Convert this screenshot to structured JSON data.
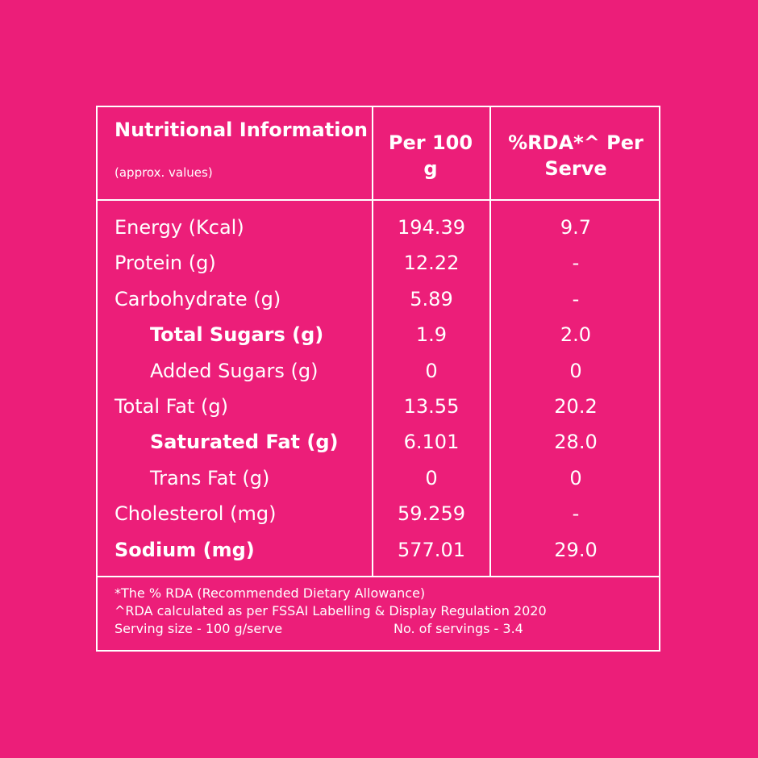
{
  "header": {
    "title": "Nutritional Information",
    "subtitle": "(approx. values)",
    "col1": "Per 100 g",
    "col2": "%RDA*^ Per Serve"
  },
  "rows": [
    {
      "name": "Energy (Kcal)",
      "per100g": "194.39",
      "rda": "9.7"
    },
    {
      "name": "Protein (g)",
      "per100g": "12.22",
      "rda": "-"
    },
    {
      "name": "Carbohydrate (g)",
      "per100g": "5.89",
      "rda": "-"
    },
    {
      "name": "Total Sugars (g)",
      "per100g": "1.9",
      "rda": "2.0"
    },
    {
      "name": "Added Sugars (g)",
      "per100g": "0",
      "rda": "0"
    },
    {
      "name": "Total Fat (g)",
      "per100g": "13.55",
      "rda": "20.2"
    },
    {
      "name": "Saturated Fat (g)",
      "per100g": "6.101",
      "rda": "28.0"
    },
    {
      "name": "Trans Fat (g)",
      "per100g": "0",
      "rda": "0"
    },
    {
      "name": "Cholesterol (mg)",
      "per100g": "59.259",
      "rda": "-"
    },
    {
      "name": "Sodium (mg)",
      "per100g": "577.01",
      "rda": "29.0"
    }
  ],
  "footer": {
    "rda_note": "*The % RDA (Recommended Dietary Allowance)",
    "regulation_note": "^RDA calculated as per FSSAI Labelling & Display Regulation 2020",
    "serving_size": "Serving size - 100 g/serve",
    "servings_count": "No. of servings - 3.4"
  },
  "colors": {
    "background": "#EC1E79",
    "foreground": "#FFFFFF"
  }
}
